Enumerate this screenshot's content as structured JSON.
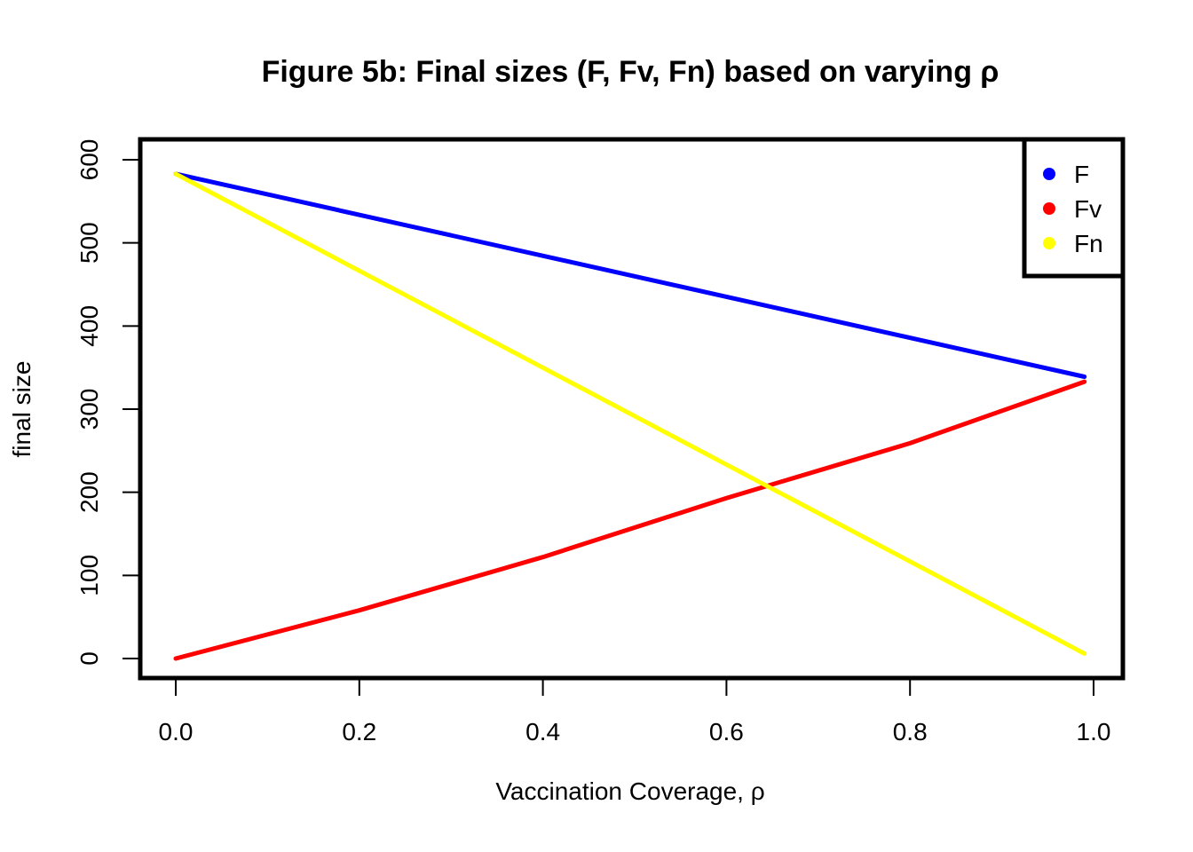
{
  "chart_data": {
    "type": "line",
    "title": "Figure 5b: Final sizes (F, Fv, Fn) based on varying ρ",
    "xlabel": "Vaccination Coverage,  ρ",
    "ylabel": "final size",
    "xlim": [
      0.0,
      1.0
    ],
    "ylim": [
      0,
      600
    ],
    "x_ticks": [
      "0.0",
      "0.2",
      "0.4",
      "0.6",
      "0.8",
      "1.0"
    ],
    "y_ticks": [
      "0",
      "100",
      "200",
      "300",
      "400",
      "500",
      "600"
    ],
    "grid": false,
    "legend_position": "top-right",
    "series": [
      {
        "name": "F",
        "color": "#0000FF",
        "x": [
          0.0,
          0.99
        ],
        "values": [
          583,
          339
        ]
      },
      {
        "name": "Fv",
        "color": "#FF0000",
        "x": [
          0.0,
          0.2,
          0.4,
          0.6,
          0.8,
          0.99
        ],
        "values": [
          0,
          58,
          122,
          193,
          259,
          333
        ]
      },
      {
        "name": "Fn",
        "color": "#FFFF00",
        "x": [
          0.0,
          0.99
        ],
        "values": [
          583,
          6
        ]
      }
    ]
  }
}
